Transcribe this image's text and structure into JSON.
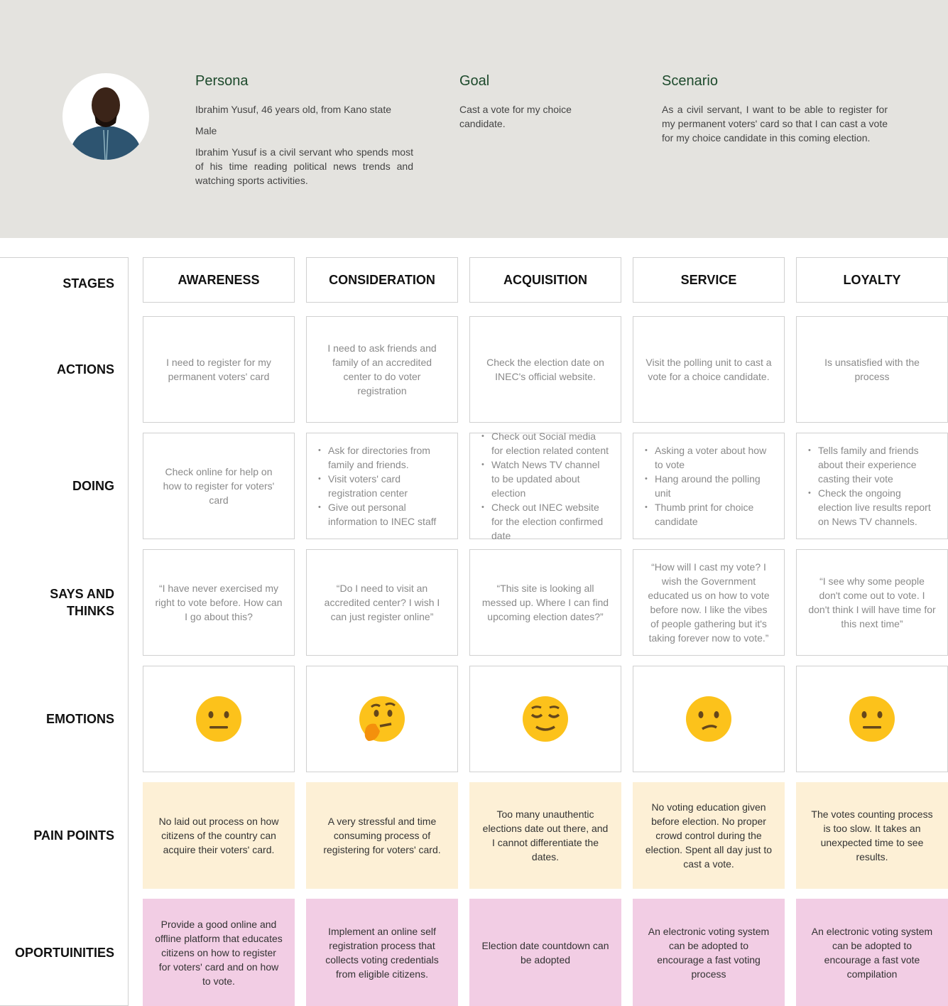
{
  "persona": {
    "title": "Persona",
    "line1": "Ibrahim Yusuf, 46 years old, from Kano state",
    "line2": "Male",
    "bio": "Ibrahim Yusuf is a civil servant who spends most of his time reading political news trends and watching sports activities."
  },
  "goal": {
    "title": "Goal",
    "text": "Cast a vote for my choice candidate."
  },
  "scenario": {
    "title": "Scenario",
    "text": "As a civil servant, I want to be able to register for my permanent voters' card so that I can cast a vote for my choice candidate in this coming election."
  },
  "row_labels": [
    "STAGES",
    "ACTIONS",
    "DOING",
    "SAYS AND THINKS",
    "EMOTIONS",
    "PAIN POINTS",
    "OPORTUINITIES"
  ],
  "stages": [
    "AWARENESS",
    "CONSIDERATION",
    "ACQUISITION",
    "SERVICE",
    "LOYALTY"
  ],
  "actions": [
    "I need to register for my permanent voters' card",
    "I need to ask friends and family of an accredited center to do voter registration",
    "Check the election date on INEC's official website.",
    "Visit the polling unit to cast a vote for a choice candidate.",
    "Is unsatisfied with the process"
  ],
  "doing": [
    [
      "Check online for help on how to register for voters' card"
    ],
    [
      "Ask for directories from family and friends.",
      "Visit voters' card registration center",
      "Give out personal information to INEC staff"
    ],
    [
      "Check out Social media for election related content",
      "Watch News TV channel to be updated about election",
      "Check out INEC website for the election confirmed date"
    ],
    [
      "Asking a voter about how to vote",
      "Hang around the polling unit",
      "Thumb print for choice candidate"
    ],
    [
      "Tells family and friends about their experience casting their vote",
      "Check the ongoing election live results report on News TV channels."
    ]
  ],
  "says": [
    "“I have never exercised my right to vote before. How can I go about this?",
    "“Do I need to visit an accredited center? I wish I can just register online”",
    "“This site is looking all messed up. Where I can find upcoming election dates?”",
    "“How will I cast my vote? I wish the Government educated us on how to vote before now. I like the vibes of people gathering but it's taking forever now to vote.”",
    "“I see why some people don't come out to vote. I don't think I will have time for this next time”"
  ],
  "emotions": [
    "neutral-face",
    "thinking-face",
    "relieved-face",
    "confused-face",
    "neutral-face"
  ],
  "pain_points": [
    "No laid out process on how citizens of the country can acquire their voters' card.",
    "A very stressful and time consuming process of registering for voters' card.",
    "Too many unauthentic elections date out there, and I cannot differentiate the dates.",
    "No voting education given before election. No proper crowd control during the election. Spent all day just to cast a vote.",
    "The votes counting process is too slow. It takes an unexpected time to see results."
  ],
  "opportunities": [
    "Provide a good online and offline platform that educates citizens on how to register for voters' card and on how to vote.",
    "Implement an online self registration process that collects voting credentials from eligible citizens.",
    "Election date countdown can be adopted",
    "An electronic voting system can be adopted to encourage a fast voting process",
    "An electronic voting system can be adopted to encourage a fast vote compilation"
  ],
  "colors": {
    "header_bg": "#e4e3df",
    "title_green": "#1d4a2c",
    "pain_bg": "#fdf0d6",
    "opportunity_bg": "#f2cde4",
    "emoji": "#fcc21b"
  }
}
